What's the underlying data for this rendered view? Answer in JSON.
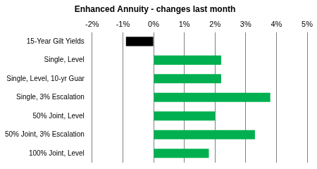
{
  "chart_data": {
    "type": "bar",
    "title": "Enhanced Annuity - changes last month",
    "orientation": "horizontal",
    "categories": [
      "15-Year Gilt Yields",
      "Single, Level",
      "Single, Level, 10-yr Guar",
      "Single, 3% Escalation",
      "50% Joint, Level",
      "50% Joint, 3% Escalation",
      "100% Joint, Level"
    ],
    "values": [
      -0.9,
      2.2,
      2.2,
      3.8,
      2.0,
      3.3,
      1.8
    ],
    "colors": [
      "#000000",
      "#00b050",
      "#00b050",
      "#00b050",
      "#00b050",
      "#00b050",
      "#00b050"
    ],
    "xlim": [
      -2,
      5
    ],
    "xticks": [
      {
        "value": -2,
        "label": "-2%"
      },
      {
        "value": -1,
        "label": "-1%"
      },
      {
        "value": 0,
        "label": "0%"
      },
      {
        "value": 1,
        "label": "1%"
      },
      {
        "value": 2,
        "label": "2%"
      },
      {
        "value": 3,
        "label": "3%"
      },
      {
        "value": 4,
        "label": "4%"
      },
      {
        "value": 5,
        "label": "5%"
      }
    ],
    "grid": true
  }
}
